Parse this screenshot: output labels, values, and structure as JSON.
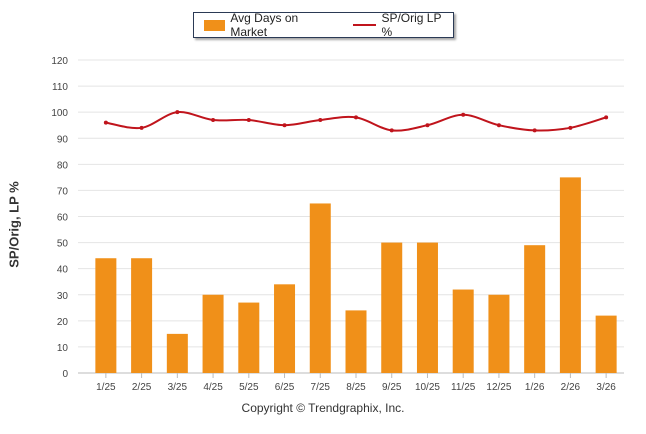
{
  "chart_data": {
    "type": "bar",
    "categories": [
      "1/25",
      "2/25",
      "3/25",
      "4/25",
      "5/25",
      "6/25",
      "7/25",
      "8/25",
      "9/25",
      "10/25",
      "11/25",
      "12/25",
      "1/26",
      "2/26",
      "3/26"
    ],
    "series": [
      {
        "name": "Avg Days on Market",
        "type": "bar",
        "color": "#f09019",
        "values": [
          44,
          44,
          15,
          30,
          27,
          34,
          65,
          24,
          50,
          50,
          32,
          30,
          49,
          75,
          22
        ]
      },
      {
        "name": "SP/Orig LP %",
        "type": "line",
        "color": "#c0141c",
        "values": [
          96,
          94,
          100,
          97,
          97,
          95,
          97,
          98,
          93,
          95,
          99,
          95,
          93,
          94,
          98
        ]
      }
    ],
    "ylabel": "SP/Orig, LP %",
    "ylim": [
      0,
      120
    ],
    "yticks": [
      0,
      10,
      20,
      30,
      40,
      50,
      60,
      70,
      80,
      90,
      100,
      110,
      120
    ],
    "grid": true,
    "legend": "top-center"
  },
  "footer": {
    "copyright": "Copyright © Trendgraphix, Inc."
  }
}
